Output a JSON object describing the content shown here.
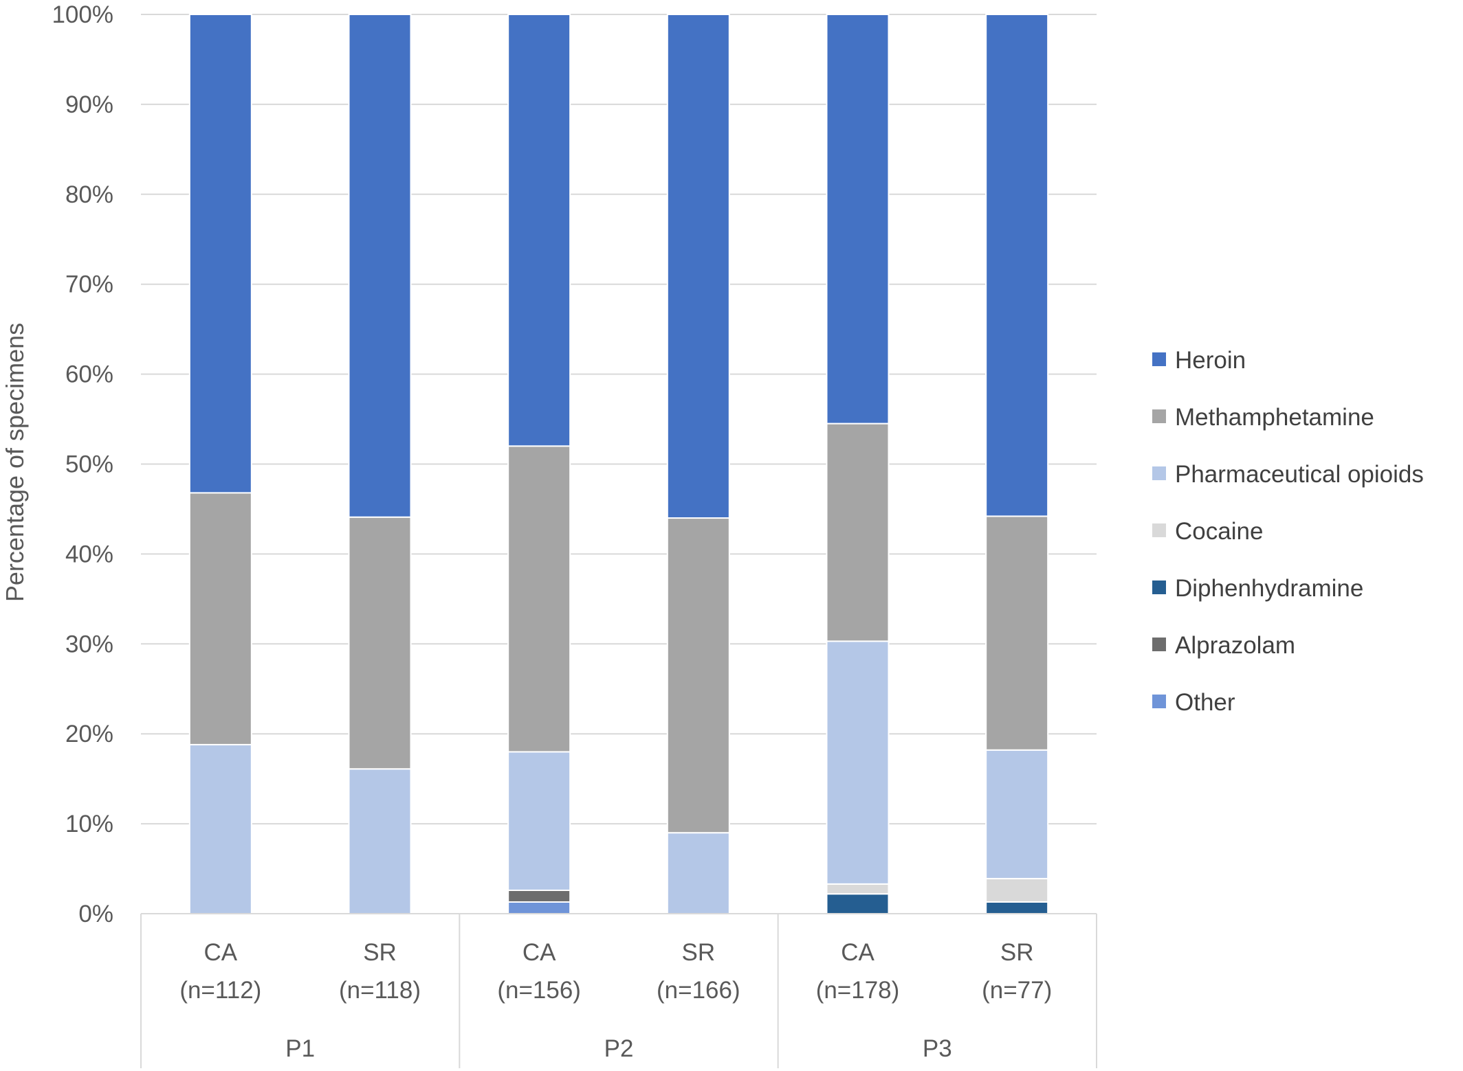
{
  "chart_data": {
    "type": "bar",
    "stacked": true,
    "normalized": true,
    "ylabel": "Percentage of specimens",
    "ylim": [
      0,
      100
    ],
    "yticks": [
      "0%",
      "10%",
      "20%",
      "30%",
      "40%",
      "50%",
      "60%",
      "70%",
      "80%",
      "90%",
      "100%"
    ],
    "grid": true,
    "legend_position": "right",
    "categories": [
      {
        "label": "CA",
        "n": "(n=112)",
        "group": "P1"
      },
      {
        "label": "SR",
        "n": "(n=118)",
        "group": "P1"
      },
      {
        "label": "CA",
        "n": "(n=156)",
        "group": "P2"
      },
      {
        "label": "SR",
        "n": "(n=166)",
        "group": "P2"
      },
      {
        "label": "CA",
        "n": "(n=178)",
        "group": "P3"
      },
      {
        "label": "SR",
        "n": "(n=77)",
        "group": "P3"
      }
    ],
    "groups": [
      "P1",
      "P2",
      "P3"
    ],
    "series": [
      {
        "name": "Other",
        "color": "#6F94D8",
        "values": [
          0,
          0,
          1.3,
          0,
          0,
          0
        ]
      },
      {
        "name": "Alprazolam",
        "color": "#6D6D6D",
        "values": [
          0,
          0,
          1.3,
          0,
          0,
          0
        ]
      },
      {
        "name": "Diphenhydramine",
        "color": "#255E91",
        "values": [
          0,
          0,
          0,
          0,
          2.2,
          1.3
        ]
      },
      {
        "name": "Cocaine",
        "color": "#D9D9D9",
        "values": [
          0,
          0,
          0,
          0,
          1.1,
          2.6
        ]
      },
      {
        "name": "Pharmaceutical opioids",
        "color": "#B4C7E7",
        "values": [
          18.8,
          16.1,
          15.4,
          9.0,
          27.0,
          14.3
        ]
      },
      {
        "name": "Methamphetamine",
        "color": "#A5A5A5",
        "values": [
          28.0,
          28.0,
          34.0,
          35.0,
          24.2,
          26.0
        ]
      },
      {
        "name": "Heroin",
        "color": "#4472C4",
        "values": [
          53.2,
          55.9,
          48.0,
          56.0,
          45.5,
          55.8
        ]
      }
    ],
    "legend_order": [
      "Heroin",
      "Methamphetamine",
      "Pharmaceutical opioids",
      "Cocaine",
      "Diphenhydramine",
      "Alprazolam",
      "Other"
    ]
  }
}
